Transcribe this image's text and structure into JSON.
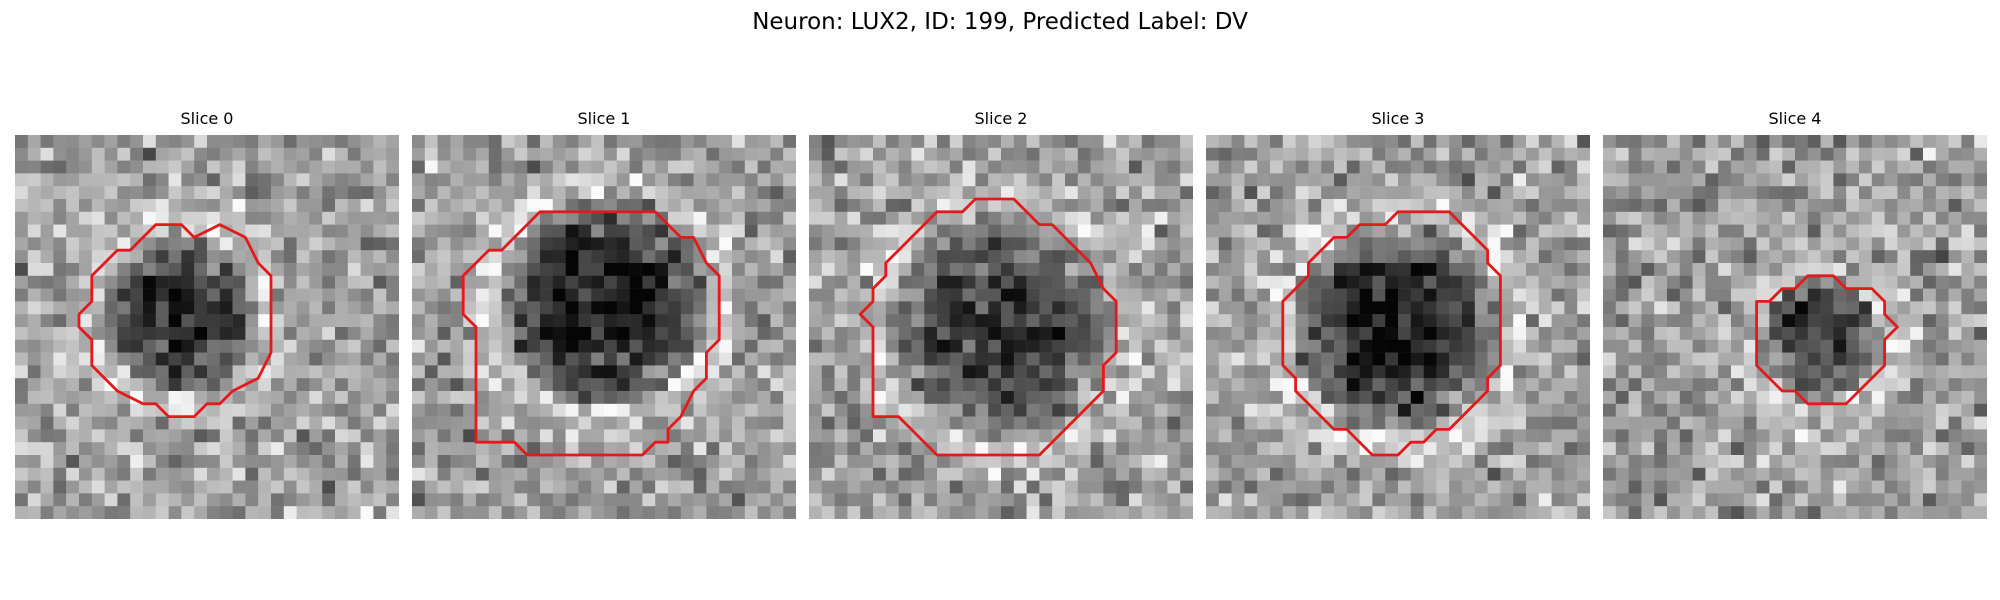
{
  "figure": {
    "title": "Neuron: LUX2, ID: 199, Predicted Label: DV"
  },
  "colors": {
    "background": "#ffffff",
    "contour": "#e31a1c",
    "colormap": "grayscale"
  },
  "slices": [
    {
      "title": "Slice 0",
      "seed": 11,
      "center": [
        13,
        14
      ],
      "radius": 6.2,
      "contrast": 0.55,
      "contour": [
        [
          16,
          7
        ],
        [
          18,
          8
        ],
        [
          19,
          10
        ],
        [
          20,
          11
        ],
        [
          20,
          17
        ],
        [
          19,
          19
        ],
        [
          17,
          20
        ],
        [
          16,
          21
        ],
        [
          15,
          21
        ],
        [
          14,
          22
        ],
        [
          12,
          22
        ],
        [
          11,
          21
        ],
        [
          10,
          21
        ],
        [
          8,
          20
        ],
        [
          7,
          19
        ],
        [
          6,
          18
        ],
        [
          6,
          16
        ],
        [
          5,
          15
        ],
        [
          5,
          14
        ],
        [
          6,
          13
        ],
        [
          6,
          11
        ],
        [
          7,
          10
        ],
        [
          8,
          9
        ],
        [
          9,
          9
        ],
        [
          10,
          8
        ],
        [
          11,
          7
        ],
        [
          13,
          7
        ],
        [
          14,
          8
        ]
      ]
    },
    {
      "title": "Slice 1",
      "seed": 23,
      "center": [
        15,
        13
      ],
      "radius": 8.5,
      "contrast": 0.62,
      "contour": [
        [
          19,
          6
        ],
        [
          20,
          7
        ],
        [
          21,
          8
        ],
        [
          22,
          8
        ],
        [
          23,
          10
        ],
        [
          24,
          11
        ],
        [
          24,
          16
        ],
        [
          23,
          17
        ],
        [
          23,
          19
        ],
        [
          22,
          20
        ],
        [
          21,
          22
        ],
        [
          20,
          23
        ],
        [
          20,
          24
        ],
        [
          19,
          24
        ],
        [
          18,
          25
        ],
        [
          9,
          25
        ],
        [
          8,
          24
        ],
        [
          5,
          24
        ],
        [
          5,
          15
        ],
        [
          4,
          14
        ],
        [
          4,
          11
        ],
        [
          5,
          10
        ],
        [
          6,
          9
        ],
        [
          7,
          9
        ],
        [
          8,
          8
        ],
        [
          9,
          7
        ],
        [
          10,
          6
        ]
      ]
    },
    {
      "title": "Slice 2",
      "seed": 37,
      "center": [
        15,
        15
      ],
      "radius": 9.0,
      "contrast": 0.45,
      "contour": [
        [
          16,
          5
        ],
        [
          17,
          6
        ],
        [
          18,
          7
        ],
        [
          19,
          7
        ],
        [
          21,
          9
        ],
        [
          22,
          10
        ],
        [
          23,
          12
        ],
        [
          24,
          13
        ],
        [
          24,
          17
        ],
        [
          23,
          18
        ],
        [
          23,
          20
        ],
        [
          22,
          21
        ],
        [
          21,
          22
        ],
        [
          20,
          23
        ],
        [
          19,
          24
        ],
        [
          18,
          25
        ],
        [
          10,
          25
        ],
        [
          9,
          24
        ],
        [
          8,
          23
        ],
        [
          7,
          22
        ],
        [
          5,
          22
        ],
        [
          5,
          15
        ],
        [
          4,
          14
        ],
        [
          5,
          13
        ],
        [
          5,
          12
        ],
        [
          6,
          11
        ],
        [
          6,
          10
        ],
        [
          7,
          9
        ],
        [
          8,
          8
        ],
        [
          9,
          7
        ],
        [
          10,
          6
        ],
        [
          12,
          6
        ],
        [
          13,
          5
        ]
      ]
    },
    {
      "title": "Slice 3",
      "seed": 51,
      "center": [
        15,
        15
      ],
      "radius": 8.4,
      "contrast": 0.58,
      "contour": [
        [
          15,
          6
        ],
        [
          19,
          6
        ],
        [
          20,
          7
        ],
        [
          21,
          8
        ],
        [
          22,
          9
        ],
        [
          22,
          10
        ],
        [
          23,
          11
        ],
        [
          23,
          18
        ],
        [
          22,
          19
        ],
        [
          22,
          20
        ],
        [
          21,
          21
        ],
        [
          20,
          22
        ],
        [
          19,
          23
        ],
        [
          18,
          23
        ],
        [
          17,
          24
        ],
        [
          16,
          24
        ],
        [
          15,
          25
        ],
        [
          13,
          25
        ],
        [
          12,
          24
        ],
        [
          11,
          23
        ],
        [
          10,
          23
        ],
        [
          9,
          22
        ],
        [
          8,
          21
        ],
        [
          7,
          20
        ],
        [
          7,
          19
        ],
        [
          6,
          18
        ],
        [
          6,
          13
        ],
        [
          7,
          12
        ],
        [
          8,
          11
        ],
        [
          8,
          10
        ],
        [
          9,
          9
        ],
        [
          10,
          8
        ],
        [
          11,
          8
        ],
        [
          12,
          7
        ],
        [
          14,
          7
        ]
      ]
    },
    {
      "title": "Slice 4",
      "seed": 67,
      "center": [
        17,
        16
      ],
      "radius": 4.8,
      "contrast": 0.42,
      "contour": [
        [
          16,
          11
        ],
        [
          18,
          11
        ],
        [
          19,
          12
        ],
        [
          21,
          12
        ],
        [
          22,
          13
        ],
        [
          22,
          14
        ],
        [
          23,
          15
        ],
        [
          22,
          16
        ],
        [
          22,
          18
        ],
        [
          21,
          19
        ],
        [
          20,
          20
        ],
        [
          19,
          21
        ],
        [
          16,
          21
        ],
        [
          15,
          20
        ],
        [
          14,
          20
        ],
        [
          13,
          19
        ],
        [
          12,
          18
        ],
        [
          12,
          13
        ],
        [
          13,
          13
        ],
        [
          14,
          12
        ],
        [
          15,
          12
        ]
      ]
    }
  ]
}
